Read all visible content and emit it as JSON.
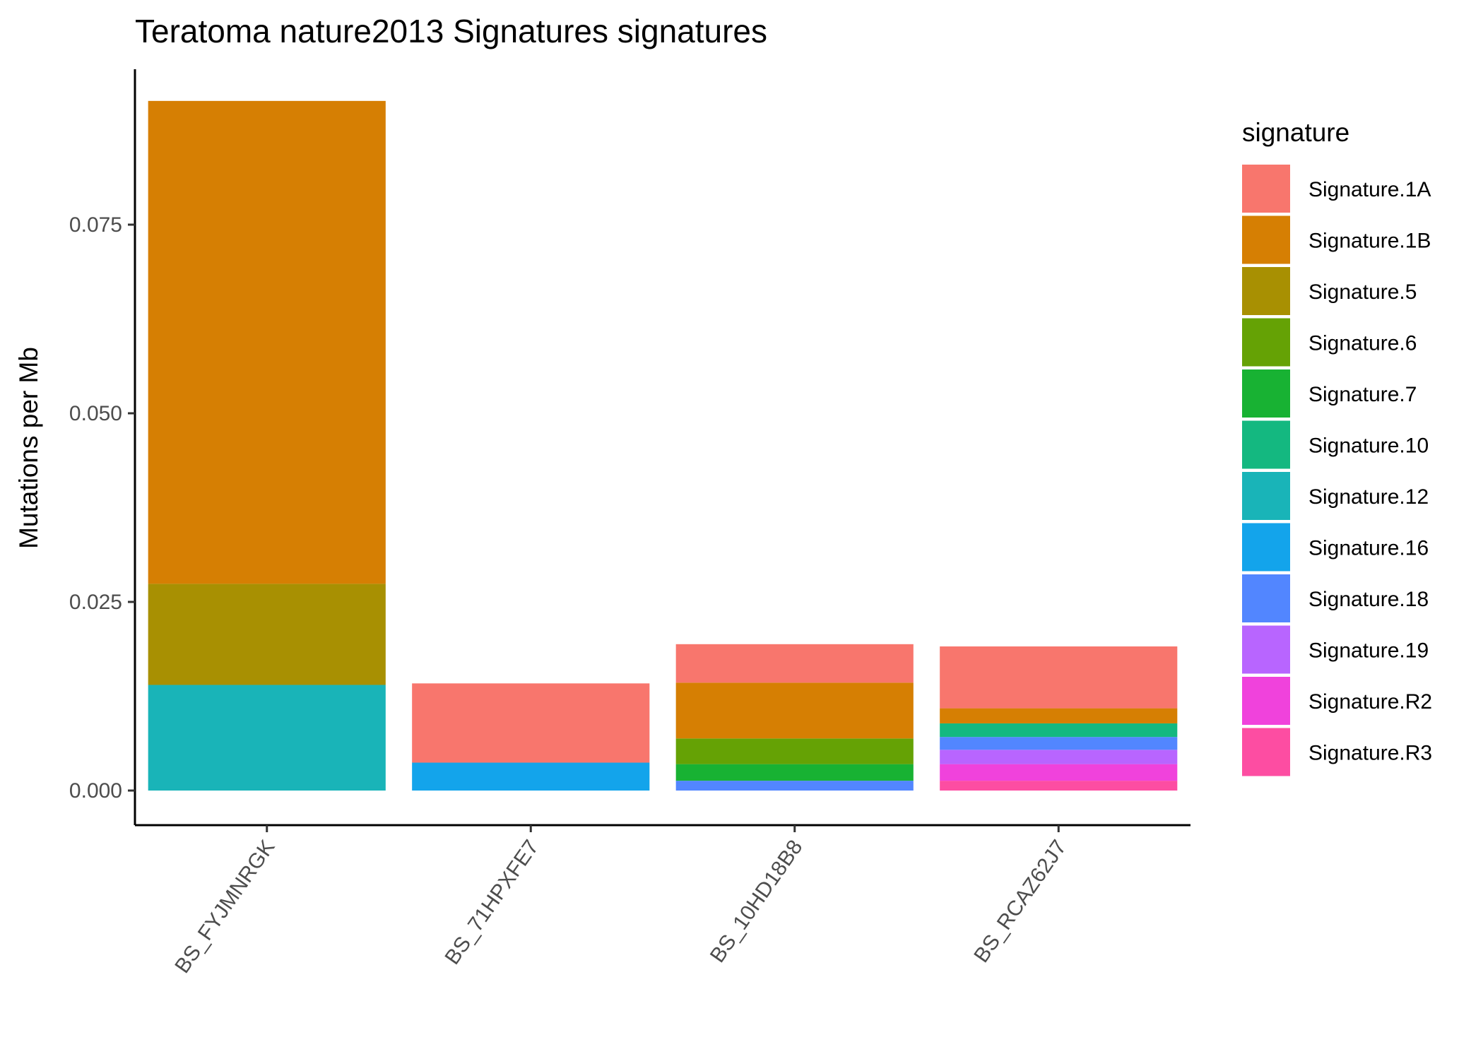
{
  "chart_data": {
    "type": "bar",
    "stacked": true,
    "title": "Teratoma nature2013 Signatures signatures",
    "xlabel": "",
    "ylabel": "Mutations per Mb",
    "ylim": [
      -0.0045,
      0.0955
    ],
    "yticks": [
      0.0,
      0.025,
      0.05,
      0.075
    ],
    "ytick_labels": [
      "0.000",
      "0.025",
      "0.050",
      "0.075"
    ],
    "categories": [
      "BS_FYJMNRGK",
      "BS_71HPXFE7",
      "BS_10HD18B8",
      "BS_RCAZ62J7"
    ],
    "legend_title": "signature",
    "legend_position": "right",
    "grid": false,
    "series": [
      {
        "name": "Signature.1A",
        "color": "#F8766D",
        "values": [
          0.0,
          0.0105,
          0.0051,
          0.0082
        ]
      },
      {
        "name": "Signature.1B",
        "color": "#D67F03",
        "values": [
          0.064,
          0.0,
          0.0074,
          0.002
        ]
      },
      {
        "name": "Signature.5",
        "color": "#A89002",
        "values": [
          0.0134,
          0.0,
          0.0,
          0.0
        ]
      },
      {
        "name": "Signature.6",
        "color": "#65A205",
        "values": [
          0.0,
          0.0,
          0.0034,
          0.0
        ]
      },
      {
        "name": "Signature.7",
        "color": "#18B233",
        "values": [
          0.0,
          0.0,
          0.0022,
          0.0
        ]
      },
      {
        "name": "Signature.10",
        "color": "#14B880",
        "values": [
          0.0,
          0.0,
          0.0,
          0.0018
        ]
      },
      {
        "name": "Signature.12",
        "color": "#19B4B8",
        "values": [
          0.014,
          0.0,
          0.0,
          0.0
        ]
      },
      {
        "name": "Signature.16",
        "color": "#13A4EB",
        "values": [
          0.0,
          0.0037,
          0.0,
          0.0
        ]
      },
      {
        "name": "Signature.18",
        "color": "#5286FF",
        "values": [
          0.0,
          0.0,
          0.0013,
          0.0017
        ]
      },
      {
        "name": "Signature.19",
        "color": "#B865FF",
        "values": [
          0.0,
          0.0,
          0.0,
          0.0019
        ]
      },
      {
        "name": "Signature.R2",
        "color": "#F042DC",
        "values": [
          0.0,
          0.0,
          0.0,
          0.0022
        ]
      },
      {
        "name": "Signature.R3",
        "color": "#FD4DA2",
        "values": [
          0.0,
          0.0,
          0.0,
          0.0013
        ]
      }
    ]
  }
}
